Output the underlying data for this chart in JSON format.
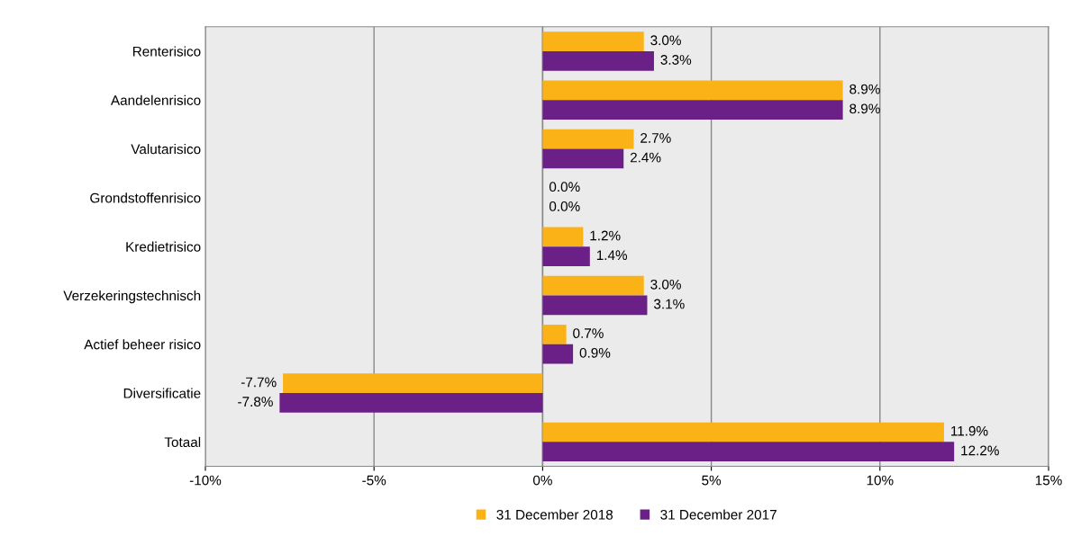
{
  "chart_data": {
    "type": "bar",
    "orientation": "horizontal",
    "categories": [
      "Renterisico",
      "Aandelenrisico",
      "Valutarisico",
      "Grondstoffenrisico",
      "Kredietrisico",
      "Verzekeringstechnisch",
      "Actief beheer risico",
      "Diversificatie",
      "Totaal"
    ],
    "series": [
      {
        "name": "31 December 2018",
        "color": "#fbb216",
        "values": [
          3.0,
          8.9,
          2.7,
          0.0,
          1.2,
          3.0,
          0.7,
          -7.7,
          11.9
        ],
        "value_labels": [
          "3.0%",
          "8.9%",
          "2.7%",
          "0.0%",
          "1.2%",
          "3.0%",
          "0.7%",
          "-7.7%",
          "11.9%"
        ]
      },
      {
        "name": "31 December 2017",
        "color": "#6b2087",
        "values": [
          3.3,
          8.9,
          2.4,
          0.0,
          1.4,
          3.1,
          0.9,
          -7.8,
          12.2
        ],
        "value_labels": [
          "3.3%",
          "8.9%",
          "2.4%",
          "0.0%",
          "1.4%",
          "3.1%",
          "0.9%",
          "-7.8%",
          "12.2%"
        ]
      }
    ],
    "xlim": [
      -10,
      15
    ],
    "xticks": [
      {
        "value": -10,
        "label": "-10%"
      },
      {
        "value": -5,
        "label": "-5%"
      },
      {
        "value": 0,
        "label": "0%"
      },
      {
        "value": 5,
        "label": "5%"
      },
      {
        "value": 10,
        "label": "10%"
      },
      {
        "value": 15,
        "label": "15%"
      }
    ],
    "grid": "x",
    "legend": "bottom"
  }
}
